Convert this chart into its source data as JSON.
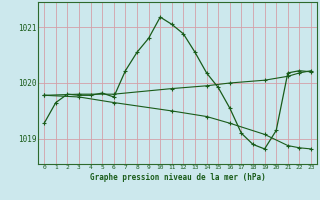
{
  "title": "Graphe pression niveau de la mer (hPa)",
  "bg_color": "#cce8ed",
  "grid_color": "#d4a0a8",
  "line_color": "#1a5c1a",
  "spine_color": "#2d6a2d",
  "xlim": [
    -0.5,
    23.5
  ],
  "ylim": [
    1018.55,
    1021.45
  ],
  "yticks": [
    1019,
    1020,
    1021
  ],
  "xticks": [
    0,
    1,
    2,
    3,
    4,
    5,
    6,
    7,
    8,
    9,
    10,
    11,
    12,
    13,
    14,
    15,
    16,
    17,
    18,
    19,
    20,
    21,
    22,
    23
  ],
  "line1_x": [
    0,
    1,
    2,
    3,
    4,
    5,
    6,
    7,
    8,
    9,
    10,
    11,
    12,
    13,
    14,
    15,
    16,
    17,
    18,
    19,
    20,
    21,
    22,
    23
  ],
  "line1_y": [
    1019.28,
    1019.65,
    1019.8,
    1019.78,
    1019.78,
    1019.82,
    1019.75,
    1020.22,
    1020.55,
    1020.8,
    1021.18,
    1021.05,
    1020.88,
    1020.55,
    1020.18,
    1019.92,
    1019.55,
    1019.1,
    1018.9,
    1018.82,
    1019.15,
    1020.18,
    1020.22,
    1020.2
  ],
  "line2_x": [
    0,
    3,
    6,
    11,
    14,
    16,
    19,
    21,
    22,
    23
  ],
  "line2_y": [
    1019.78,
    1019.8,
    1019.8,
    1019.9,
    1019.95,
    1020.0,
    1020.05,
    1020.12,
    1020.18,
    1020.22
  ],
  "line3_x": [
    0,
    3,
    6,
    11,
    14,
    16,
    19,
    21,
    22,
    23
  ],
  "line3_y": [
    1019.78,
    1019.75,
    1019.65,
    1019.5,
    1019.4,
    1019.28,
    1019.08,
    1018.88,
    1018.84,
    1018.82
  ]
}
